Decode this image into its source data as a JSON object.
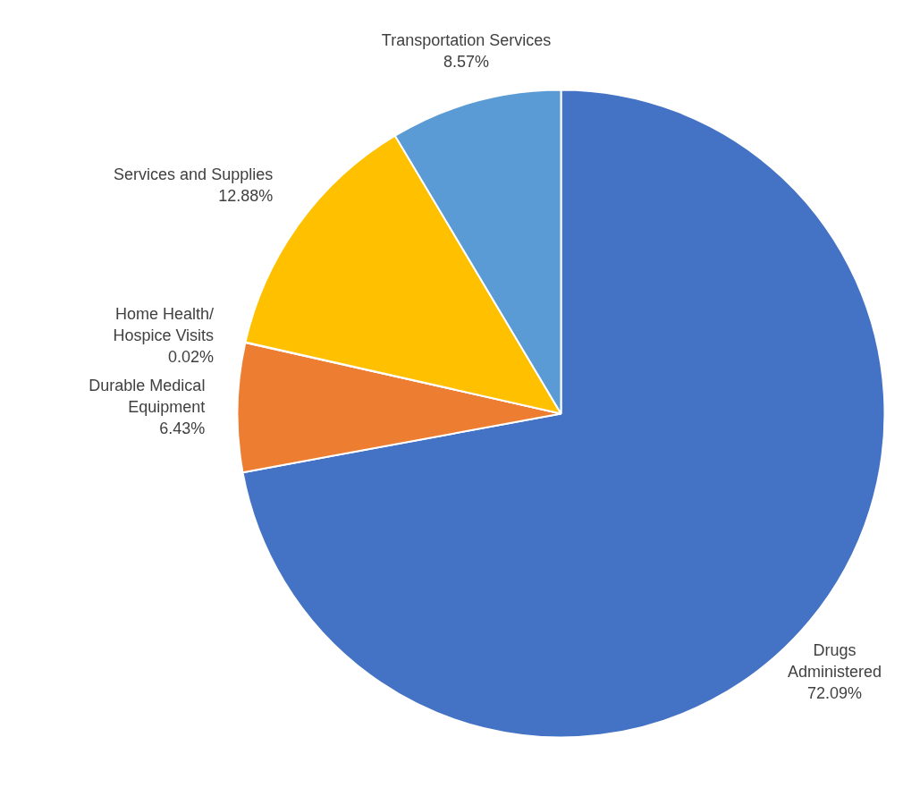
{
  "chart_data": {
    "type": "pie",
    "categories": [
      "Drugs\nAdministered",
      "Durable Medical\nEquipment",
      "Home Health/\nHospice Visits",
      "Services and Supplies",
      "Transportation Services"
    ],
    "values": [
      72.09,
      6.43,
      0.02,
      12.88,
      8.57
    ],
    "colors": [
      "#4472c4",
      "#ed7d31",
      "#a5a5a5",
      "#ffc000",
      "#5b9bd5"
    ],
    "value_labels": [
      "72.09%",
      "6.43%",
      "0.02%",
      "12.88%",
      "8.57%"
    ]
  }
}
